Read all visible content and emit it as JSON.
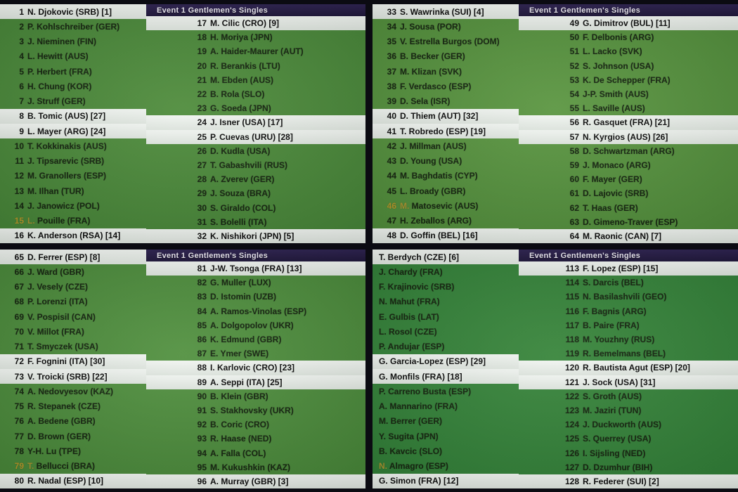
{
  "event_label": "Event 1 Gentlemen's Singles",
  "colors": {
    "screen_green": "#417f34",
    "seed_row_white": "#e8ece8",
    "header_navy": "#241a42",
    "highlight_gold": "#b59428",
    "row_text": "#15240f"
  },
  "panels": [
    {
      "header": "Event 1 Gentlemen's Singles",
      "left": {
        "cut": false,
        "rows": [
          {
            "n": "1",
            "t": "N. Djokovic (SRB) [1]",
            "w": true
          },
          {
            "n": "2",
            "t": "P. Kohlschreiber (GER)"
          },
          {
            "n": "3",
            "t": "J. Nieminen (FIN)"
          },
          {
            "n": "4",
            "t": "L. Hewitt (AUS)"
          },
          {
            "n": "5",
            "t": "P. Herbert (FRA)"
          },
          {
            "n": "6",
            "t": "H. Chung (KOR)"
          },
          {
            "n": "7",
            "t": "J. Struff (GER)"
          },
          {
            "n": "8",
            "t": "B. Tomic (AUS) [27]",
            "w": true
          },
          {
            "n": "9",
            "t": "L. Mayer (ARG) [24]",
            "w": true
          },
          {
            "n": "10",
            "t": "T. Kokkinakis (AUS)"
          },
          {
            "n": "11",
            "t": "J. Tipsarevic (SRB)"
          },
          {
            "n": "12",
            "t": "M. Granollers (ESP)"
          },
          {
            "n": "13",
            "t": "M. Ilhan (TUR)"
          },
          {
            "n": "14",
            "t": "J. Janowicz (POL)"
          },
          {
            "n": "15",
            "t": "L. Pouille (FRA)",
            "g": true
          },
          {
            "n": "16",
            "t": "K. Anderson (RSA) [14]",
            "w": true
          }
        ]
      },
      "right": {
        "cut": false,
        "rows": [
          {
            "n": "17",
            "t": "M. Cilic (CRO) [9]",
            "w": true
          },
          {
            "n": "18",
            "t": "H. Moriya (JPN)"
          },
          {
            "n": "19",
            "t": "A. Haider-Maurer (AUT)"
          },
          {
            "n": "20",
            "t": "R. Berankis (LTU)"
          },
          {
            "n": "21",
            "t": "M. Ebden (AUS)"
          },
          {
            "n": "22",
            "t": "B. Rola (SLO)"
          },
          {
            "n": "23",
            "t": "G. Soeda (JPN)"
          },
          {
            "n": "24",
            "t": "J. Isner (USA) [17]",
            "w": true
          },
          {
            "n": "25",
            "t": "P. Cuevas (URU) [28]",
            "w": true
          },
          {
            "n": "26",
            "t": "D. Kudla (USA)"
          },
          {
            "n": "27",
            "t": "T. Gabashvili (RUS)"
          },
          {
            "n": "28",
            "t": "A. Zverev (GER)"
          },
          {
            "n": "29",
            "t": "J. Souza (BRA)"
          },
          {
            "n": "30",
            "t": "S. Giraldo (COL)"
          },
          {
            "n": "31",
            "t": "S. Bolelli (ITA)"
          },
          {
            "n": "32",
            "t": "K. Nishikori (JPN) [5]",
            "w": true
          }
        ]
      }
    },
    {
      "header": "Event 1 Gentlemen's Singles",
      "left": {
        "cut": false,
        "rows": [
          {
            "n": "33",
            "t": "S. Wawrinka (SUI) [4]",
            "w": true
          },
          {
            "n": "34",
            "t": "J. Sousa (POR)"
          },
          {
            "n": "35",
            "t": "V. Estrella Burgos (DOM)"
          },
          {
            "n": "36",
            "t": "B. Becker (GER)"
          },
          {
            "n": "37",
            "t": "M. Klizan (SVK)"
          },
          {
            "n": "38",
            "t": "F. Verdasco (ESP)"
          },
          {
            "n": "39",
            "t": "D. Sela (ISR)"
          },
          {
            "n": "40",
            "t": "D. Thiem (AUT) [32]",
            "w": true
          },
          {
            "n": "41",
            "t": "T. Robredo (ESP) [19]",
            "w": true
          },
          {
            "n": "42",
            "t": "J. Millman (AUS)"
          },
          {
            "n": "43",
            "t": "D. Young (USA)"
          },
          {
            "n": "44",
            "t": "M. Baghdatis (CYP)"
          },
          {
            "n": "45",
            "t": "L. Broady (GBR)"
          },
          {
            "n": "46",
            "t": "M. Matosevic (AUS)",
            "g": true
          },
          {
            "n": "47",
            "t": "H. Zeballos (ARG)"
          },
          {
            "n": "48",
            "t": "D. Goffin (BEL) [16]",
            "w": true
          }
        ]
      },
      "right": {
        "cut": false,
        "rows": [
          {
            "n": "49",
            "t": "G. Dimitrov (BUL) [11]",
            "w": true
          },
          {
            "n": "50",
            "t": "F. Delbonis (ARG)"
          },
          {
            "n": "51",
            "t": "L. Lacko (SVK)"
          },
          {
            "n": "52",
            "t": "S. Johnson (USA)"
          },
          {
            "n": "53",
            "t": "K. De Schepper (FRA)"
          },
          {
            "n": "54",
            "t": "J-P. Smith (AUS)"
          },
          {
            "n": "55",
            "t": "L. Saville (AUS)"
          },
          {
            "n": "56",
            "t": "R. Gasquet (FRA) [21]",
            "w": true
          },
          {
            "n": "57",
            "t": "N. Kyrgios (AUS) [26]",
            "w": true
          },
          {
            "n": "58",
            "t": "D. Schwartzman (ARG)"
          },
          {
            "n": "59",
            "t": "J. Monaco (ARG)"
          },
          {
            "n": "60",
            "t": "F. Mayer (GER)"
          },
          {
            "n": "61",
            "t": "D. Lajovic (SRB)"
          },
          {
            "n": "62",
            "t": "T. Haas (GER)"
          },
          {
            "n": "63",
            "t": "D. Gimeno-Traver (ESP)"
          },
          {
            "n": "64",
            "t": "M. Raonic (CAN) [7]",
            "w": true
          }
        ]
      }
    },
    {
      "header": "Event 1 Gentlemen's Singles",
      "left": {
        "cut": false,
        "rows": [
          {
            "n": "65",
            "t": "D. Ferrer (ESP) [8]",
            "w": true
          },
          {
            "n": "66",
            "t": "J. Ward (GBR)"
          },
          {
            "n": "67",
            "t": "J. Vesely (CZE)"
          },
          {
            "n": "68",
            "t": "P. Lorenzi (ITA)"
          },
          {
            "n": "69",
            "t": "V. Pospisil (CAN)"
          },
          {
            "n": "70",
            "t": "V. Millot (FRA)"
          },
          {
            "n": "71",
            "t": "T. Smyczek (USA)"
          },
          {
            "n": "72",
            "t": "F. Fognini (ITA) [30]",
            "w": true
          },
          {
            "n": "73",
            "t": "V. Troicki (SRB) [22]",
            "w": true
          },
          {
            "n": "74",
            "t": "A. Nedovyesov (KAZ)"
          },
          {
            "n": "75",
            "t": "R. Stepanek (CZE)"
          },
          {
            "n": "76",
            "t": "A. Bedene (GBR)"
          },
          {
            "n": "77",
            "t": "D. Brown (GER)"
          },
          {
            "n": "78",
            "t": "Y-H. Lu (TPE)"
          },
          {
            "n": "79",
            "t": "T. Bellucci (BRA)",
            "g": true
          },
          {
            "n": "80",
            "t": "R. Nadal (ESP) [10]",
            "w": true
          }
        ]
      },
      "right": {
        "cut": false,
        "rows": [
          {
            "n": "81",
            "t": "J-W. Tsonga (FRA) [13]",
            "w": true
          },
          {
            "n": "82",
            "t": "G. Muller (LUX)"
          },
          {
            "n": "83",
            "t": "D. Istomin (UZB)"
          },
          {
            "n": "84",
            "t": "A. Ramos-Vinolas (ESP)"
          },
          {
            "n": "85",
            "t": "A. Dolgopolov (UKR)"
          },
          {
            "n": "86",
            "t": "K. Edmund (GBR)"
          },
          {
            "n": "87",
            "t": "E. Ymer (SWE)"
          },
          {
            "n": "88",
            "t": "I. Karlovic (CRO) [23]",
            "w": true
          },
          {
            "n": "89",
            "t": "A. Seppi (ITA) [25]",
            "w": true
          },
          {
            "n": "90",
            "t": "B. Klein (GBR)"
          },
          {
            "n": "91",
            "t": "S. Stakhovsky (UKR)"
          },
          {
            "n": "92",
            "t": "B. Coric (CRO)"
          },
          {
            "n": "93",
            "t": "R. Haase (NED)"
          },
          {
            "n": "94",
            "t": "A. Falla (COL)"
          },
          {
            "n": "95",
            "t": "M. Kukushkin (KAZ)"
          },
          {
            "n": "96",
            "t": "A. Murray (GBR) [3]",
            "w": true
          }
        ]
      }
    },
    {
      "header": "Event 1 Gentlemen's Singles",
      "left": {
        "cut": true,
        "rows": [
          {
            "n": "",
            "t": "T. Berdych (CZE) [6]",
            "w": true
          },
          {
            "n": "",
            "t": "J. Chardy (FRA)"
          },
          {
            "n": "",
            "t": "F. Krajinovic (SRB)"
          },
          {
            "n": "",
            "t": "N. Mahut (FRA)"
          },
          {
            "n": "",
            "t": "E. Gulbis (LAT)"
          },
          {
            "n": "",
            "t": "L. Rosol (CZE)"
          },
          {
            "n": "",
            "t": "P. Andujar (ESP)"
          },
          {
            "n": "",
            "t": "G. Garcia-Lopez (ESP) [29]",
            "w": true
          },
          {
            "n": "",
            "t": "G. Monfils (FRA) [18]",
            "w": true
          },
          {
            "n": "",
            "t": "P. Carreno Busta (ESP)"
          },
          {
            "n": "",
            "t": "A. Mannarino (FRA)"
          },
          {
            "n": "",
            "t": "M. Berrer (GER)"
          },
          {
            "n": "",
            "t": "Y. Sugita (JPN)"
          },
          {
            "n": "",
            "t": "B. Kavcic (SLO)"
          },
          {
            "n": "",
            "t": "N. Almagro (ESP)",
            "g": true
          },
          {
            "n": "",
            "t": "G. Simon (FRA) [12]",
            "w": true
          }
        ]
      },
      "right": {
        "cut": false,
        "rows": [
          {
            "n": "113",
            "t": "F. Lopez (ESP) [15]",
            "w": true
          },
          {
            "n": "114",
            "t": "S. Darcis (BEL)"
          },
          {
            "n": "115",
            "t": "N. Basilashvili (GEO)"
          },
          {
            "n": "116",
            "t": "F. Bagnis (ARG)"
          },
          {
            "n": "117",
            "t": "B. Paire (FRA)"
          },
          {
            "n": "118",
            "t": "M. Youzhny (RUS)"
          },
          {
            "n": "119",
            "t": "R. Bemelmans (BEL)"
          },
          {
            "n": "120",
            "t": "R. Bautista Agut (ESP) [20]",
            "w": true
          },
          {
            "n": "121",
            "t": "J. Sock (USA) [31]",
            "w": true
          },
          {
            "n": "122",
            "t": "S. Groth (AUS)"
          },
          {
            "n": "123",
            "t": "M. Jaziri (TUN)"
          },
          {
            "n": "124",
            "t": "J. Duckworth (AUS)"
          },
          {
            "n": "125",
            "t": "S. Querrey (USA)"
          },
          {
            "n": "126",
            "t": "I. Sijsling (NED)"
          },
          {
            "n": "127",
            "t": "D. Dzumhur (BIH)"
          },
          {
            "n": "128",
            "t": "R. Federer (SUI) [2]",
            "w": true
          }
        ]
      }
    }
  ]
}
